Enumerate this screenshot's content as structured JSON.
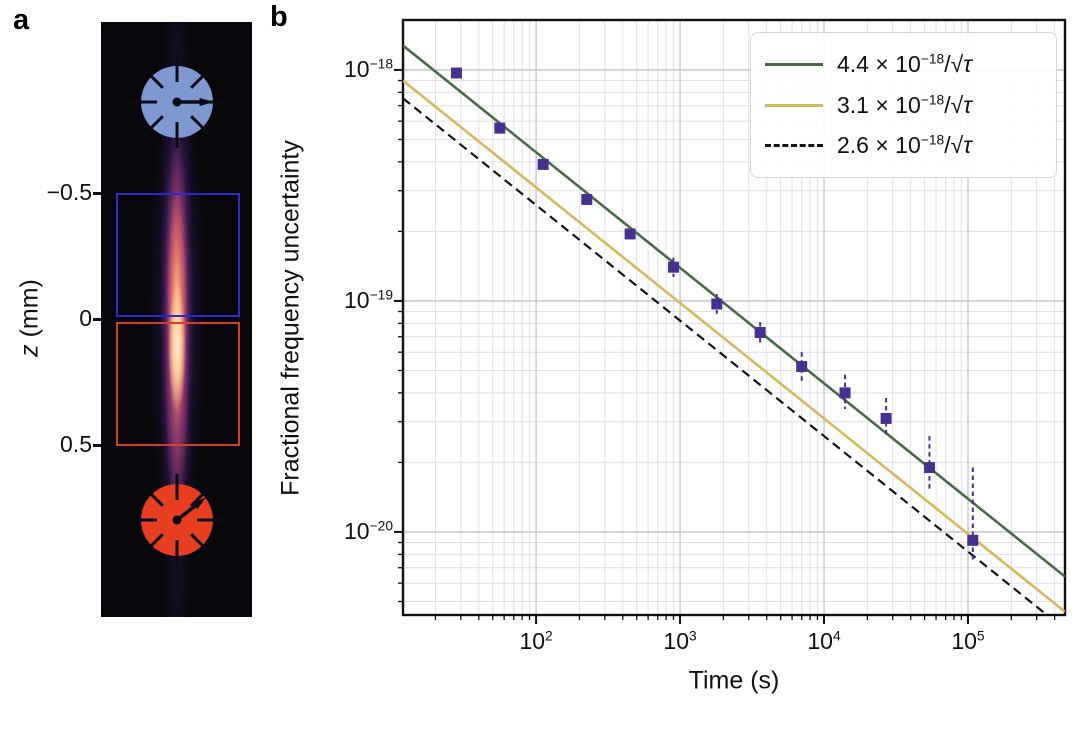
{
  "panel_a": {
    "label": "a",
    "axis_label_var": "z",
    "axis_label_unit": " (mm)",
    "z_ticks": [
      {
        "label": "−0.5",
        "z": -0.5
      },
      {
        "label": "0",
        "z": 0
      },
      {
        "label": "0.5",
        "z": 0.5
      }
    ],
    "regions": [
      {
        "name": "upper-region-box",
        "color": "#2a2ace",
        "z_from": -0.5,
        "z_to": 0
      },
      {
        "name": "lower-region-box",
        "color": "#d2402a",
        "z_from": 0,
        "z_to": 0.5
      }
    ],
    "clocks": [
      {
        "name": "upper-clock",
        "color": "#8098d2",
        "hand_angle_deg": 0,
        "z_center": -0.861
      },
      {
        "name": "lower-clock",
        "color": "#e73d20",
        "hand_angle_deg": -38,
        "z_center": 0.798
      }
    ]
  },
  "panel_b": {
    "label": "b"
  },
  "chart_data": {
    "type": "scatter",
    "title": "",
    "xlabel": "Time (s)",
    "ylabel": "Fractional frequency uncertainty",
    "xscale": "log",
    "yscale": "log",
    "xlim": [
      11.9,
      472000
    ],
    "ylim": [
      4.37e-21,
      1.645e-18
    ],
    "grid": {
      "major_color": "#c3c0cc",
      "minor_color": "#e1dfe8"
    },
    "x_ticks": [
      {
        "value": 100,
        "base": "10",
        "exp": "2"
      },
      {
        "value": 1000,
        "base": "10",
        "exp": "3"
      },
      {
        "value": 10000,
        "base": "10",
        "exp": "4"
      },
      {
        "value": 100000,
        "base": "10",
        "exp": "5"
      }
    ],
    "y_ticks": [
      {
        "value": 1e-18,
        "base": "10",
        "exp": "−18"
      },
      {
        "value": 1e-19,
        "base": "10",
        "exp": "−19"
      },
      {
        "value": 1e-20,
        "base": "10",
        "exp": "−20"
      }
    ],
    "series": [
      {
        "name": "4.4 × 10⁻¹⁸/√τ",
        "coeff": 4.4e-18,
        "color": "#4a6b47",
        "dash": false,
        "label_pre": "4.4 × 10",
        "label_sup": "−18",
        "label_post": "/√",
        "label_tau": "τ"
      },
      {
        "name": "3.1 × 10⁻¹⁸/√τ",
        "coeff": 3.1e-18,
        "color": "#d6b85c",
        "dash": false,
        "label_pre": "3.1 × 10",
        "label_sup": "−18",
        "label_post": "/√",
        "label_tau": "τ"
      },
      {
        "name": "2.6 × 10⁻¹⁸/√τ",
        "coeff": 2.6e-18,
        "color": "#141414",
        "dash": true,
        "label_pre": "2.6 × 10",
        "label_sup": "−18",
        "label_post": "/√",
        "label_tau": "τ"
      }
    ],
    "points": {
      "color": "#47318e",
      "marker": "square",
      "data": [
        {
          "t": 28,
          "v": 9.7e-19
        },
        {
          "t": 56,
          "v": 5.6e-19
        },
        {
          "t": 112,
          "v": 3.9e-19
        },
        {
          "t": 225,
          "v": 2.75e-19
        },
        {
          "t": 450,
          "v": 1.95e-19
        },
        {
          "t": 900,
          "v": 1.4e-19,
          "lo": 1.27e-19,
          "hi": 1.54e-19
        },
        {
          "t": 1800,
          "v": 9.7e-20,
          "lo": 8.8e-20,
          "hi": 1.07e-19
        },
        {
          "t": 3600,
          "v": 7.3e-20,
          "lo": 6.6e-20,
          "hi": 8.1e-20
        },
        {
          "t": 7000,
          "v": 5.2e-20,
          "lo": 4.5e-20,
          "hi": 6e-20
        },
        {
          "t": 14000,
          "v": 4e-20,
          "lo": 3.4e-20,
          "hi": 4.8e-20
        },
        {
          "t": 27000,
          "v": 3.1e-20,
          "lo": 2.55e-20,
          "hi": 3.8e-20
        },
        {
          "t": 54000,
          "v": 1.9e-20,
          "lo": 1.5e-20,
          "hi": 2.6e-20
        },
        {
          "t": 108000,
          "v": 9.2e-21,
          "lo": 7.6e-21,
          "hi": 1.9e-20
        }
      ]
    },
    "legend": {
      "position": "top-right"
    }
  }
}
